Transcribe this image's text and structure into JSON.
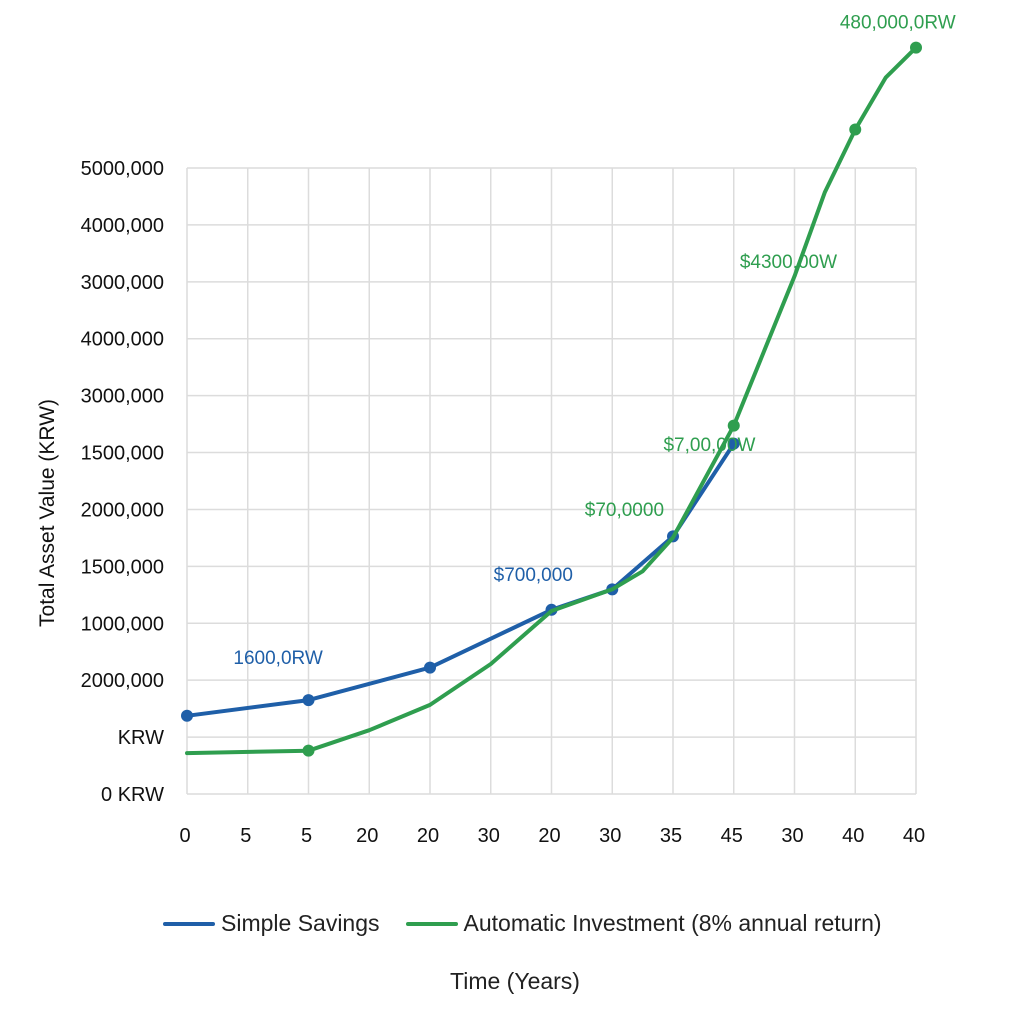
{
  "chart_data": {
    "type": "line",
    "ylabel": "Total Asset Value (KRW)",
    "xlabel": "Time (Years)",
    "x_tick_labels": [
      "0",
      "5",
      "5",
      "20",
      "20",
      "30",
      "20",
      "30",
      "35",
      "45",
      "30",
      "40",
      "40"
    ],
    "y_tick_labels": [
      "5000,000",
      "4000,000",
      "3000,000",
      "4000,000",
      "3000,000",
      "1500,000",
      "2000,000",
      "1500,000",
      "1000,000",
      "2000,000",
      "KRW",
      "0 KRW"
    ],
    "grid": true,
    "legend_position": "bottom",
    "series": [
      {
        "name": "Simple Savings",
        "color": "#1f5fa8",
        "points": [
          {
            "x": 0,
            "y": 650000
          },
          {
            "x": 2,
            "y": 780000
          },
          {
            "x": 4,
            "y": 1050000
          },
          {
            "x": 6,
            "y": 1530000
          },
          {
            "x": 7,
            "y": 1700000
          },
          {
            "x": 8,
            "y": 2140000
          },
          {
            "x": 9,
            "y": 2910000
          }
        ],
        "labels": [
          {
            "x": 1.5,
            "y": 1080000,
            "text": "1600,0RW"
          },
          {
            "x": 5.7,
            "y": 1770000,
            "text": "$700,000"
          }
        ]
      },
      {
        "name": "Automatic Investment (8% annual return)",
        "color": "#2f9e4f",
        "points": [
          {
            "x": 0,
            "y": 340000
          },
          {
            "x": 2,
            "y": 360000
          },
          {
            "x": 3,
            "y": 530000
          },
          {
            "x": 4,
            "y": 740000
          },
          {
            "x": 5,
            "y": 1080000
          },
          {
            "x": 6,
            "y": 1520000
          },
          {
            "x": 7,
            "y": 1700000
          },
          {
            "x": 7.5,
            "y": 1850000
          },
          {
            "x": 8,
            "y": 2130000
          },
          {
            "x": 9,
            "y": 3060000
          },
          {
            "x": 10,
            "y": 4300000
          },
          {
            "x": 10.5,
            "y": 5000000
          },
          {
            "x": 11,
            "y": 5520000
          },
          {
            "x": 11.5,
            "y": 5950000
          },
          {
            "x": 12,
            "y": 6200000
          }
        ],
        "markers": [
          {
            "x": 2,
            "y": 360000
          },
          {
            "x": 9,
            "y": 3060000
          },
          {
            "x": 11,
            "y": 5520000
          },
          {
            "x": 12,
            "y": 6200000
          }
        ],
        "labels": [
          {
            "x": 7.2,
            "y": 2310000,
            "text": "$70,0000"
          },
          {
            "x": 8.6,
            "y": 2850000,
            "text": "$7,00,00W"
          },
          {
            "x": 9.9,
            "y": 4370000,
            "text": "$4300,00W"
          },
          {
            "x": 11.7,
            "y": 6360000,
            "text": "480,000,0RW"
          }
        ]
      }
    ]
  },
  "legend": {
    "simple_label": "Simple Savings",
    "invest_label": "Automatic Investment (8% annual return)"
  },
  "axis": {
    "x_title": "Time (Years)"
  }
}
